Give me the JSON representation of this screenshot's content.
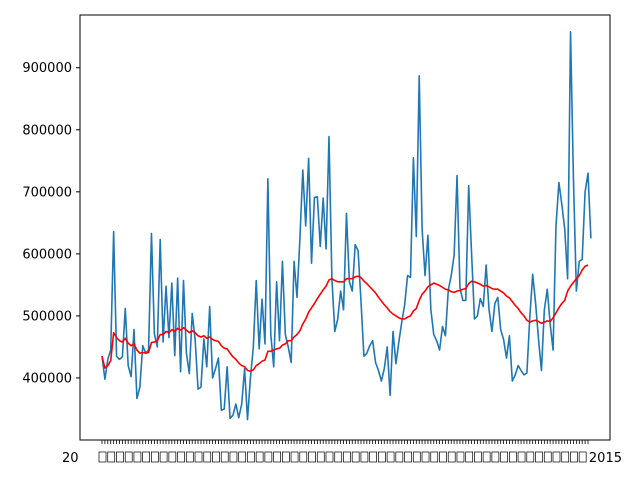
{
  "chart_data": {
    "type": "line",
    "title": "",
    "xlabel": "",
    "ylabel": "",
    "ylim": [
      300000,
      985000
    ],
    "yticks": [
      400000,
      500000,
      600000,
      700000,
      800000,
      900000
    ],
    "ytick_labels": [
      "400000",
      "500000",
      "600000",
      "700000",
      "800000",
      "900000"
    ],
    "x_count": 168,
    "xtick_labels_visible": [
      "20",
      "2015"
    ],
    "grid": false,
    "legend": "none",
    "series": [
      {
        "color": "#1f77b4",
        "values": [
          435000,
          398000,
          430000,
          445000,
          636000,
          435000,
          430000,
          434000,
          512000,
          420000,
          402000,
          478000,
          367000,
          385000,
          452000,
          440000,
          445000,
          633000,
          471000,
          450000,
          623000,
          458000,
          548000,
          465000,
          553000,
          436000,
          561000,
          410000,
          557000,
          440000,
          407000,
          504000,
          462000,
          382000,
          385000,
          463000,
          418000,
          515000,
          400000,
          415000,
          432000,
          348000,
          350000,
          418000,
          335000,
          340000,
          358000,
          336000,
          358000,
          415000,
          333000,
          400000,
          450000,
          557000,
          447000,
          527000,
          455000,
          721000,
          470000,
          418000,
          555000,
          460000,
          588000,
          470000,
          450000,
          425000,
          588000,
          530000,
          624000,
          735000,
          645000,
          754000,
          585000,
          691000,
          692000,
          612000,
          690000,
          608000,
          789000,
          560000,
          475000,
          495000,
          540000,
          510000,
          665000,
          555000,
          540000,
          615000,
          605000,
          523000,
          435000,
          440000,
          452000,
          460000,
          425000,
          412000,
          395000,
          415000,
          450000,
          372000,
          475000,
          423000,
          458000,
          490000,
          518000,
          565000,
          562000,
          755000,
          628000,
          887000,
          640000,
          565000,
          630000,
          510000,
          470000,
          460000,
          445000,
          483000,
          468000,
          542000,
          565000,
          598000,
          726000,
          545000,
          525000,
          525000,
          710000,
          600000,
          495000,
          500000,
          528000,
          515000,
          582000,
          510000,
          475000,
          520000,
          530000,
          478000,
          462000,
          432000,
          468000,
          395000,
          405000,
          420000,
          412000,
          405000,
          408000,
          498000,
          567000,
          520000,
          462000,
          412000,
          510000,
          543000,
          487000,
          445000,
          645000,
          715000,
          680000,
          640000,
          560000,
          958000,
          720000,
          540000,
          588000,
          591000,
          700000,
          730000,
          625000
        ]
      },
      {
        "color": "#ff0000",
        "values": [
          435000,
          416000,
          420000,
          428000,
          473000,
          465000,
          460000,
          458000,
          464000,
          456000,
          452000,
          455000,
          445000,
          440000,
          441000,
          440000,
          441000,
          457000,
          458000,
          460000,
          470000,
          470000,
          475000,
          473000,
          478000,
          475000,
          480000,
          477000,
          481000,
          477000,
          473000,
          476000,
          473000,
          468000,
          466000,
          468000,
          464000,
          466000,
          462000,
          460000,
          459000,
          452000,
          448000,
          447000,
          440000,
          434000,
          430000,
          424000,
          420000,
          418000,
          412000,
          411000,
          413000,
          420000,
          423000,
          427000,
          429000,
          443000,
          443000,
          445000,
          447000,
          448000,
          453000,
          455000,
          460000,
          460000,
          466000,
          470000,
          476000,
          487000,
          495000,
          506000,
          513000,
          520000,
          528000,
          535000,
          542000,
          548000,
          558000,
          560000,
          557000,
          555000,
          555000,
          555000,
          560000,
          560000,
          560000,
          563000,
          564000,
          562000,
          556000,
          552000,
          547000,
          542000,
          537000,
          530000,
          524000,
          518000,
          513000,
          507000,
          503000,
          500000,
          497000,
          495000,
          495000,
          498000,
          500000,
          508000,
          512000,
          525000,
          535000,
          540000,
          547000,
          550000,
          553000,
          551000,
          549000,
          546000,
          543000,
          542000,
          539000,
          538000,
          540000,
          541000,
          543000,
          544000,
          552000,
          556000,
          555000,
          553000,
          551000,
          548000,
          549000,
          547000,
          544000,
          543000,
          543000,
          540000,
          537000,
          532000,
          529000,
          523000,
          517000,
          512000,
          505000,
          500000,
          493000,
          490000,
          492000,
          493000,
          491000,
          488000,
          490000,
          492000,
          491000,
          497000,
          505000,
          513000,
          520000,
          525000,
          540000,
          548000,
          554000,
          560000,
          565000,
          574000,
          580000,
          582000
        ]
      }
    ]
  }
}
